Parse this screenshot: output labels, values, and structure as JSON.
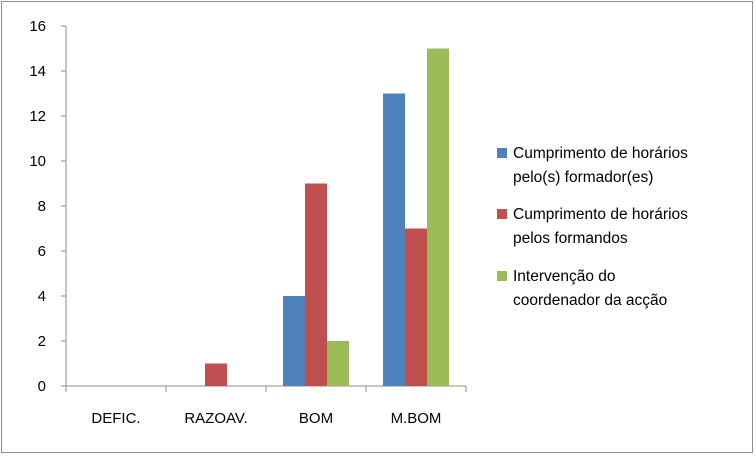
{
  "chart_data": {
    "type": "bar",
    "categories": [
      "DEFIC.",
      "RAZOAV.",
      "BOM",
      "M.BOM"
    ],
    "series": [
      {
        "name_lines": [
          "Cumprimento de horários",
          "pelo(s) formador(es)"
        ],
        "values": [
          0,
          0,
          4,
          13
        ],
        "color": "#4f81bd"
      },
      {
        "name_lines": [
          "Cumprimento de horários",
          "pelos formandos"
        ],
        "values": [
          0,
          1,
          9,
          7
        ],
        "color": "#c0504d"
      },
      {
        "name_lines": [
          "Intervenção do",
          "coordenador da acção"
        ],
        "values": [
          0,
          0,
          2,
          15
        ],
        "color": "#9bbb59"
      }
    ],
    "ylim": [
      0,
      16
    ],
    "yticks": [
      "0",
      "2",
      "4",
      "6",
      "8",
      "10",
      "12",
      "14",
      "16"
    ],
    "grid": false,
    "legend_position": "right"
  }
}
